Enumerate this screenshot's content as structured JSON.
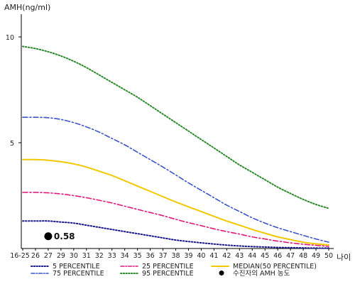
{
  "chart_data": {
    "type": "line",
    "ylabel": "AMH(ng/ml)",
    "xlabel": "나이",
    "x_ticks": [
      "16-25",
      "26",
      "27",
      "29",
      "30",
      "31",
      "32",
      "33",
      "34",
      "35",
      "36",
      "37",
      "38",
      "39",
      "40",
      "41",
      "42",
      "43",
      "44",
      "45",
      "46",
      "47",
      "48",
      "49",
      "50"
    ],
    "y_ticks": [
      5,
      10
    ],
    "ylim": [
      0,
      11
    ],
    "grid": false,
    "legend_position": "bottom",
    "series": [
      {
        "name": "5 PERCENTILE",
        "color": "#1a1a8c",
        "dash": "dotted",
        "values": [
          1.3,
          1.3,
          1.3,
          1.25,
          1.2,
          1.1,
          1.0,
          0.9,
          0.8,
          0.7,
          0.6,
          0.5,
          0.4,
          0.33,
          0.27,
          0.21,
          0.16,
          0.12,
          0.09,
          0.07,
          0.05,
          0.04,
          0.03,
          0.02,
          0.02
        ]
      },
      {
        "name": "25 PERCENTILE",
        "color": "#e0197a",
        "dash": "dashdot",
        "values": [
          2.65,
          2.65,
          2.63,
          2.58,
          2.5,
          2.4,
          2.28,
          2.15,
          2.0,
          1.85,
          1.7,
          1.55,
          1.38,
          1.22,
          1.08,
          0.93,
          0.8,
          0.68,
          0.55,
          0.45,
          0.35,
          0.27,
          0.2,
          0.15,
          0.1
        ]
      },
      {
        "name": "MEDIAN(50 PERCENTILE)",
        "color": "#f2c800",
        "dash": "solid",
        "values": [
          4.2,
          4.2,
          4.17,
          4.1,
          4.0,
          3.85,
          3.65,
          3.45,
          3.2,
          2.95,
          2.7,
          2.45,
          2.2,
          1.97,
          1.75,
          1.52,
          1.3,
          1.1,
          0.9,
          0.72,
          0.55,
          0.42,
          0.3,
          0.22,
          0.17
        ]
      },
      {
        "name": "75 PERCENTILE",
        "color": "#3a55c8",
        "dash": "dashdot",
        "values": [
          6.2,
          6.2,
          6.18,
          6.1,
          5.95,
          5.75,
          5.5,
          5.2,
          4.9,
          4.55,
          4.2,
          3.85,
          3.48,
          3.1,
          2.75,
          2.4,
          2.05,
          1.75,
          1.45,
          1.2,
          0.98,
          0.8,
          0.62,
          0.45,
          0.3
        ]
      },
      {
        "name": "95 PERCENTILE",
        "color": "#2e8b2e",
        "dash": "dotted",
        "values": [
          9.55,
          9.45,
          9.3,
          9.1,
          8.85,
          8.55,
          8.2,
          7.85,
          7.5,
          7.15,
          6.75,
          6.35,
          5.95,
          5.55,
          5.15,
          4.75,
          4.35,
          3.95,
          3.6,
          3.25,
          2.9,
          2.6,
          2.32,
          2.08,
          1.9
        ]
      }
    ],
    "patient": {
      "label": "수진자의 AMH 농도",
      "x": "27",
      "y": 0.58,
      "value_label": "0.58"
    }
  }
}
